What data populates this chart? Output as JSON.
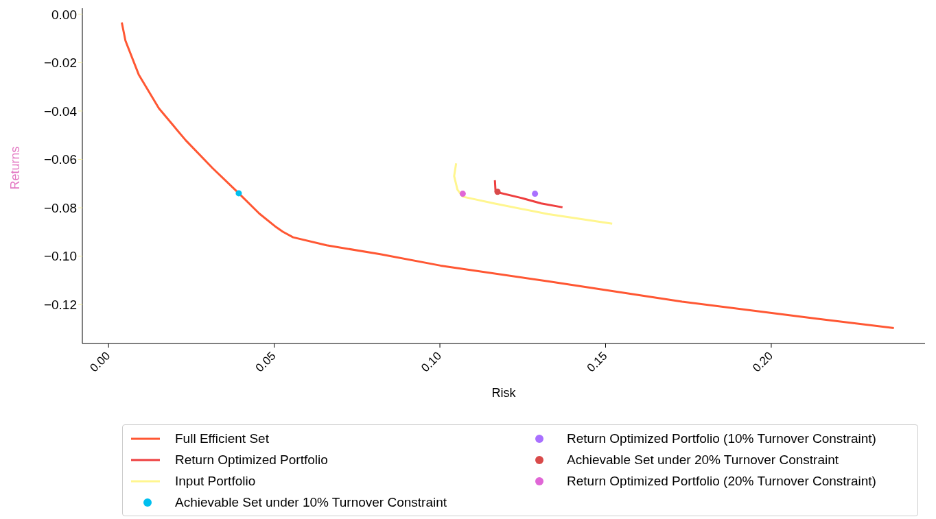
{
  "chart_data": {
    "type": "line",
    "xlabel": "Risk",
    "ylabel": "Returns",
    "xlim": [
      -0.0079,
      0.2464
    ],
    "ylim": [
      -0.1361,
      0.0025
    ],
    "xticks": [
      {
        "value": 0,
        "label": "0.00"
      },
      {
        "value": 0.05,
        "label": "0.05"
      },
      {
        "value": 0.1,
        "label": "0.10"
      },
      {
        "value": 0.15,
        "label": "0.15"
      },
      {
        "value": 0.2,
        "label": "0.20"
      }
    ],
    "yticks": [
      {
        "value": 0,
        "label": "0.00"
      },
      {
        "value": -0.02,
        "label": "−0.02"
      },
      {
        "value": -0.04,
        "label": "−0.04"
      },
      {
        "value": -0.06,
        "label": "−0.06"
      },
      {
        "value": -0.08,
        "label": "−0.08"
      },
      {
        "value": -0.1,
        "label": "−0.10"
      },
      {
        "value": -0.12,
        "label": "−0.12"
      }
    ],
    "grid": false,
    "legend": "bottom",
    "line_style": "solid",
    "series": [
      {
        "name": "Full Efficient Set",
        "type": "line",
        "color": "#ff5733",
        "x": [
          0.004,
          0.0051,
          0.0091,
          0.0152,
          0.0233,
          0.0314,
          0.0393,
          0.0455,
          0.0506,
          0.0526,
          0.0557,
          0.0658,
          0.082,
          0.1002,
          0.1326,
          0.1731,
          0.2136,
          0.237
        ],
        "values": [
          -0.0034,
          -0.0109,
          -0.0249,
          -0.0389,
          -0.0521,
          -0.0636,
          -0.074,
          -0.0824,
          -0.088,
          -0.0899,
          -0.0922,
          -0.0955,
          -0.0992,
          -0.1039,
          -0.1104,
          -0.1188,
          -0.1258,
          -0.1297
        ]
      },
      {
        "name": "Return Optimized Portfolio",
        "type": "line",
        "color": "#ee3f3f",
        "x": [
          0.1166,
          0.1168,
          0.1245,
          0.1306,
          0.137
        ],
        "values": [
          -0.0686,
          -0.0734,
          -0.0759,
          -0.0782,
          -0.0798
        ]
      },
      {
        "name": "Input Portfolio",
        "type": "line",
        "color": "#fff68f",
        "x": [
          0.1049,
          0.1043,
          0.1053,
          0.1069,
          0.1164,
          0.1326,
          0.152
        ],
        "values": [
          -0.0616,
          -0.0669,
          -0.0725,
          -0.0754,
          -0.0782,
          -0.0826,
          -0.0866
        ]
      },
      {
        "name": "Achievable Set under 10% Turnover Constraint",
        "type": "scatter",
        "marker": "circle",
        "color": "#00bfef",
        "x": [
          0.0393
        ],
        "values": [
          -0.074
        ]
      },
      {
        "name": "Return Optimized Portfolio (10% Turnover Constraint)",
        "type": "scatter",
        "marker": "circle",
        "color": "#a970ff",
        "x": [
          0.1287
        ],
        "values": [
          -0.0742
        ]
      },
      {
        "name": "Achievable Set under 20% Turnover Constraint",
        "type": "scatter",
        "marker": "circle",
        "color": "#d94a4a",
        "x": [
          0.1174
        ],
        "values": [
          -0.0734
        ]
      },
      {
        "name": "Return Optimized Portfolio (20% Turnover Constraint)",
        "type": "scatter",
        "marker": "circle",
        "color": "#e066d6",
        "x": [
          0.1069
        ],
        "values": [
          -0.0742
        ]
      }
    ]
  }
}
